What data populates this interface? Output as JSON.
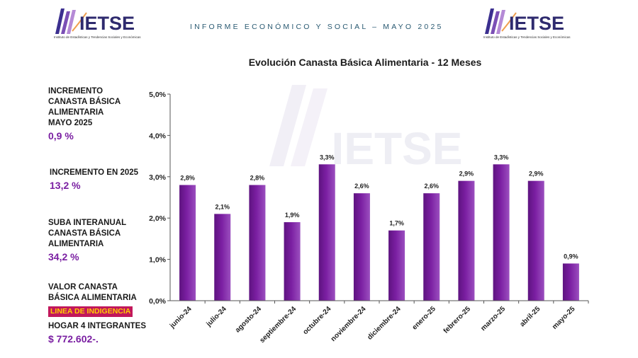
{
  "header": {
    "logo_text": "IETSE",
    "logo_subtitle": "Instituto de Estadísticas y Tendencias Sociales y Económicas",
    "report_title": "INFORME ECONÓMICO Y SOCIAL – MAYO 2025"
  },
  "sidebar": {
    "block1": {
      "line1": "INCREMENTO",
      "line2": "CANASTA BÁSICA",
      "line3": "ALIMENTARIA",
      "line4": "MAYO 2025",
      "value": "0,9 %"
    },
    "block2": {
      "label": "INCREMENTO EN 2025",
      "value": "13,2 %"
    },
    "block3": {
      "line1": "SUBA INTERANUAL",
      "line2": "CANASTA BÁSICA",
      "line3": "ALIMENTARIA",
      "value": "34,2 %"
    },
    "block4": {
      "line1": "VALOR CANASTA",
      "line2": "BÁSICA ALIMENTARIA",
      "badge": "LINEA DE INDIGENCIA",
      "line3": "HOGAR 4 INTEGRANTES",
      "value": "$ 772.602-."
    }
  },
  "chart_data": {
    "type": "bar",
    "title": "Evolución Canasta Básica Alimentaria - 12 Meses",
    "watermark": "IETSE",
    "categories": [
      "junio-24",
      "julio-24",
      "agosto-24",
      "septiembre-24",
      "octubre-24",
      "noviembre-24",
      "diciembre-24",
      "enero-25",
      "febrero-25",
      "marzo-25",
      "abril-25",
      "mayo-25"
    ],
    "values": [
      2.8,
      2.1,
      2.8,
      1.9,
      3.3,
      2.6,
      1.7,
      2.6,
      2.9,
      3.3,
      2.9,
      0.9
    ],
    "data_labels": [
      "2,8%",
      "2,1%",
      "2,8%",
      "1,9%",
      "3,3%",
      "2,6%",
      "1,7%",
      "2,6%",
      "2,9%",
      "3,3%",
      "2,9%",
      "0,9%"
    ],
    "yticks": [
      "0,0%",
      "1,0%",
      "2,0%",
      "3,0%",
      "4,0%",
      "5,0%"
    ],
    "ylim": [
      0,
      5
    ],
    "xlabel": "",
    "ylabel": "",
    "bar_color": "#7b1fa2",
    "grid": false,
    "legend": "none"
  }
}
